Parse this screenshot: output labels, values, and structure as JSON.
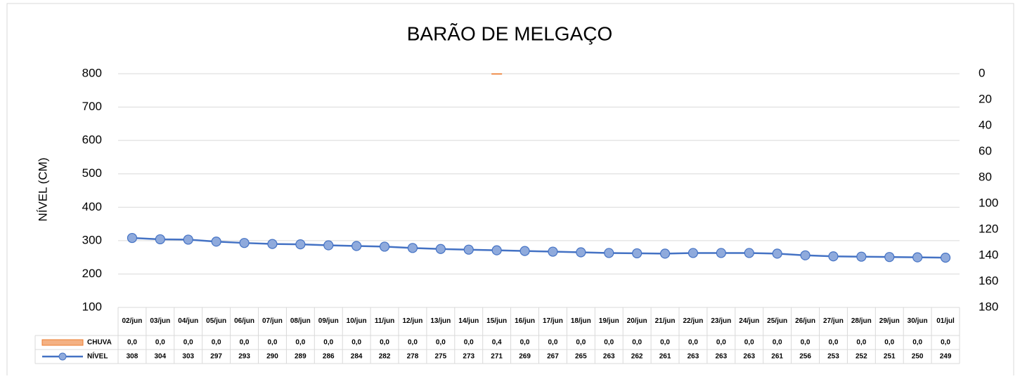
{
  "chart_data": {
    "type": "bar-line",
    "title": "BARÃO DE MELGAÇO",
    "y_label": "NÍVEL (CM)",
    "categories": [
      "02/jun",
      "03/jun",
      "04/jun",
      "05/jun",
      "06/jun",
      "07/jun",
      "08/jun",
      "09/jun",
      "10/jun",
      "11/jun",
      "12/jun",
      "13/jun",
      "14/jun",
      "15/jun",
      "16/jun",
      "17/jun",
      "18/jun",
      "19/jun",
      "20/jun",
      "21/jun",
      "22/jun",
      "23/jun",
      "24/jun",
      "25/jun",
      "26/jun",
      "27/jun",
      "28/jun",
      "29/jun",
      "30/jun",
      "01/jul"
    ],
    "series": [
      {
        "name": "CHUVA",
        "color": "#ed7d31",
        "type": "bar",
        "axis": "y2",
        "values": [
          0,
          0,
          0,
          0,
          0,
          0,
          0,
          0,
          0,
          0,
          0,
          0,
          0,
          0.4,
          0,
          0,
          0,
          0,
          0,
          0,
          0,
          0,
          0,
          0,
          0,
          0,
          0,
          0,
          0,
          0
        ],
        "value_labels": [
          "0,0",
          "0,0",
          "0,0",
          "0,0",
          "0,0",
          "0,0",
          "0,0",
          "0,0",
          "0,0",
          "0,0",
          "0,0",
          "0,0",
          "0,0",
          "0,4",
          "0,0",
          "0,0",
          "0,0",
          "0,0",
          "0,0",
          "0,0",
          "0,0",
          "0,0",
          "0,0",
          "0,0",
          "0,0",
          "0,0",
          "0,0",
          "0,0",
          "0,0",
          "0,0"
        ]
      },
      {
        "name": "NÍVEL",
        "color": "#4472c4",
        "type": "line",
        "values": [
          308,
          304,
          303,
          297,
          293,
          290,
          289,
          286,
          284,
          282,
          278,
          275,
          273,
          271,
          269,
          267,
          265,
          263,
          262,
          261,
          263,
          263,
          263,
          261,
          256,
          253,
          252,
          251,
          250,
          249
        ]
      }
    ],
    "ylim": [
      100,
      800
    ],
    "yticks": [
      100,
      200,
      300,
      400,
      500,
      600,
      700,
      800
    ],
    "y2lim": [
      0,
      180
    ],
    "y2ticks": [
      0,
      20,
      40,
      60,
      80,
      100,
      120,
      140,
      160,
      180
    ],
    "y2_reversed": true,
    "grid": true
  }
}
